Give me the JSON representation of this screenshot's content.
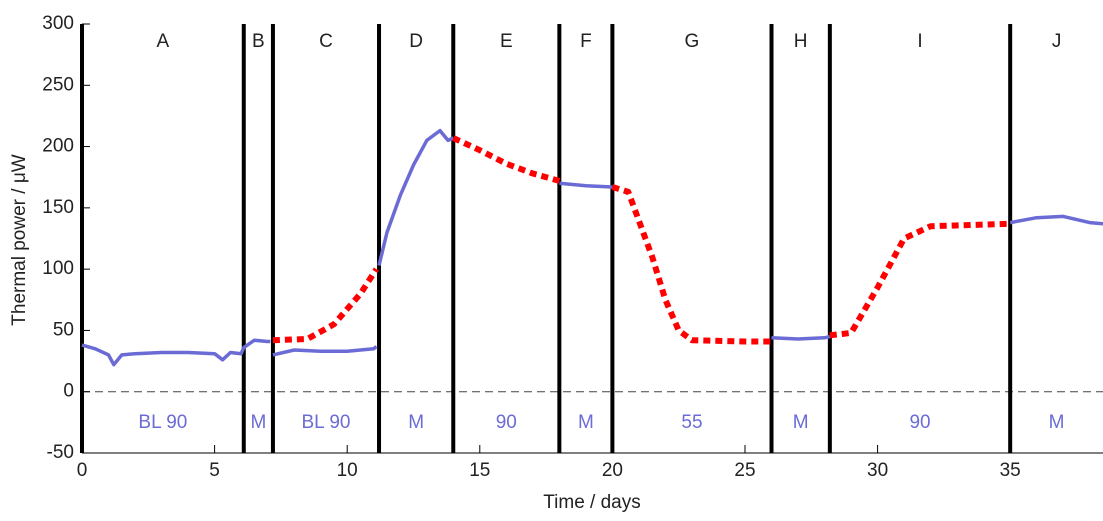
{
  "chart_data": {
    "type": "line",
    "x_label": "Time / days",
    "y_label": "Thermal power / μW",
    "xlim": [
      0,
      38.5
    ],
    "ylim": [
      -50,
      300
    ],
    "xticks": [
      0,
      5,
      10,
      15,
      20,
      25,
      30,
      35
    ],
    "yticks": [
      -50,
      0,
      50,
      100,
      150,
      200,
      250,
      300
    ],
    "dividers": [
      6.1,
      7.2,
      11.2,
      14,
      18,
      20,
      26,
      28.2,
      35
    ],
    "section_labels": [
      "A",
      "B",
      "C",
      "D",
      "E",
      "F",
      "G",
      "H",
      "I",
      "J"
    ],
    "condition_labels": [
      "BL 90",
      "M",
      "BL 90",
      "M",
      "90",
      "M",
      "55",
      "M",
      "90",
      "M"
    ],
    "condition_color": "#6b6bd6",
    "series": [
      {
        "color": "#6b6bd6",
        "style": "solid",
        "x": [
          0,
          0.5,
          1,
          1.2,
          1.5,
          2,
          3,
          4,
          5,
          5.3,
          5.6,
          6,
          6.1,
          6.5,
          7,
          7.1,
          7.15,
          7.2,
          8,
          9,
          10,
          11,
          11.1,
          11.15,
          11.2,
          11.5,
          12,
          12.5,
          13,
          13.5,
          13.8,
          14,
          16,
          18,
          19,
          20,
          23,
          26,
          27,
          28,
          28.2,
          31,
          35,
          36,
          37,
          38,
          38.5
        ],
        "values": [
          38,
          35,
          30,
          22,
          30,
          31,
          32,
          32,
          31,
          26,
          32,
          31,
          36,
          42,
          41,
          41,
          null,
          30,
          34,
          33,
          33,
          35,
          37,
          null,
          103,
          130,
          160,
          185,
          205,
          213,
          205,
          207,
          null,
          170,
          168,
          167,
          null,
          44,
          43,
          44,
          45,
          null,
          138,
          142,
          143,
          138,
          137
        ]
      },
      {
        "color": "#ff0000",
        "style": "dotted",
        "x": [
          7.2,
          8.5,
          9.5,
          10.5,
          11.1,
          12.5,
          14,
          15,
          16,
          17,
          18,
          19,
          20,
          20.6,
          21.5,
          22,
          22.5,
          23,
          25,
          26,
          27,
          28.2,
          29,
          30,
          31,
          32,
          35
        ],
        "values": [
          42,
          43,
          55,
          80,
          100,
          null,
          207,
          197,
          186,
          178,
          172,
          null,
          167,
          163,
          110,
          75,
          50,
          42,
          41,
          41,
          null,
          46,
          48,
          85,
          125,
          135,
          137
        ]
      }
    ]
  }
}
